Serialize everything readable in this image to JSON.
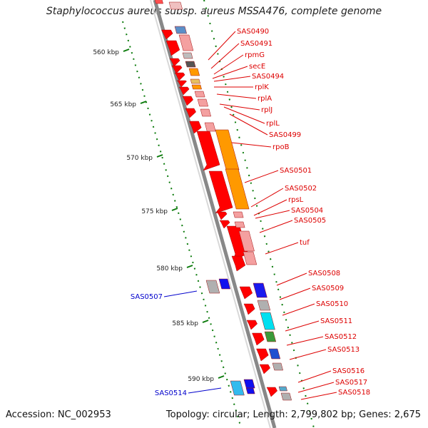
{
  "title": "Staphylococcus aureus subsp. aureus MSSA476, complete genome",
  "accession": "Accession: NC_002953",
  "summary": "Topology: circular; Length: 2,799,802 bp; Genes: 2,675",
  "ticks": [
    {
      "label": "560 kbp",
      "pos": 560
    },
    {
      "label": "565 kbp",
      "pos": 565
    },
    {
      "label": "570 kbp",
      "pos": 570
    },
    {
      "label": "575 kbp",
      "pos": 575
    },
    {
      "label": "580 kbp",
      "pos": 580
    },
    {
      "label": "585 kbp",
      "pos": 585
    },
    {
      "label": "590 kbp",
      "pos": 590
    }
  ],
  "right_labels": [
    "SAS0490",
    "SAS0491",
    "rpmG",
    "secE",
    "SAS0494",
    "rplK",
    "rplA",
    "rplJ",
    "rplL",
    "SAS0499",
    "rpoB",
    "SAS0501",
    "SAS0502",
    "rpsL",
    "SAS0504",
    "SAS0505",
    "tuf",
    "SAS0508",
    "SAS0509",
    "SAS0510",
    "SAS0511",
    "SAS0512",
    "SAS0513",
    "SAS0516",
    "SAS0517",
    "SAS0518"
  ],
  "left_labels": [
    "SAS0507",
    "SAS0514"
  ],
  "colors": {
    "gene": "#ff0000",
    "left_gene": "#0000cc",
    "cds_pink": "#f4a0a0",
    "orange": "#ff9900",
    "cyan": "#00e0f0",
    "grey": "#b0b0b0",
    "tick": "#0a7a0a",
    "backbone": "#888888"
  }
}
